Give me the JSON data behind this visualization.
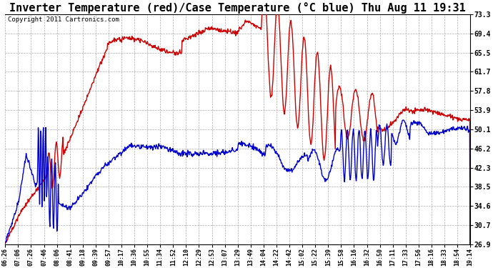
{
  "title": "Inverter Temperature (red)/Case Temperature (°C blue) Thu Aug 11 19:31",
  "copyright": "Copyright 2011 Cartronics.com",
  "ylabel_right_values": [
    73.3,
    69.4,
    65.5,
    61.7,
    57.8,
    53.9,
    50.1,
    46.2,
    42.3,
    38.5,
    34.6,
    30.7,
    26.9
  ],
  "ymin": 26.9,
  "ymax": 73.3,
  "x_labels": [
    "06:26",
    "07:06",
    "07:26",
    "07:46",
    "08:06",
    "08:41",
    "09:18",
    "09:39",
    "09:57",
    "10:17",
    "10:36",
    "10:55",
    "11:34",
    "11:52",
    "12:10",
    "12:29",
    "12:53",
    "13:07",
    "13:29",
    "13:49",
    "14:04",
    "14:22",
    "14:42",
    "15:02",
    "15:22",
    "15:39",
    "15:58",
    "16:16",
    "16:32",
    "16:50",
    "17:11",
    "17:33",
    "17:56",
    "18:16",
    "18:33",
    "18:54",
    "19:14"
  ],
  "background_color": "#ffffff",
  "plot_bg_color": "#ffffff",
  "grid_color": "#aaaaaa",
  "red_color": "#cc0000",
  "blue_color": "#0000cc",
  "title_fontsize": 11,
  "copyright_fontsize": 6.5,
  "linewidth": 1.0
}
